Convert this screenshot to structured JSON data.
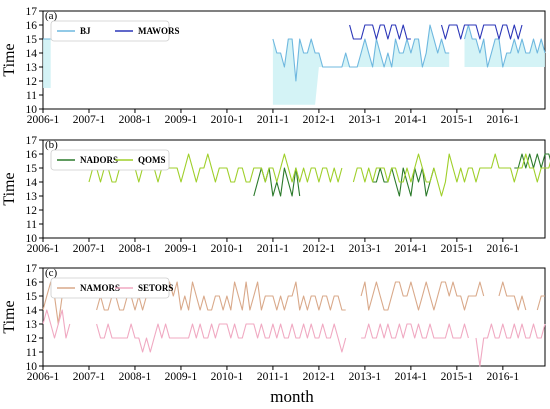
{
  "figure": {
    "xlabel": "month"
  },
  "chart_data": [
    {
      "type": "line",
      "panel_label": "(a)",
      "ylabel": "Time",
      "ylim": [
        10,
        17
      ],
      "yticks": [
        10,
        11,
        12,
        13,
        14,
        15,
        16,
        17
      ],
      "xlim": [
        "2006-01",
        "2016-12"
      ],
      "xticks": [
        "2006-1",
        "2007-1",
        "2008-1",
        "2009-1",
        "2010-1",
        "2011-1",
        "2012-1",
        "2013-1",
        "2014-1",
        "2015-1",
        "2016-1"
      ],
      "legend": {
        "placement": "top-left",
        "entries": [
          "BJ",
          "MAWORS"
        ]
      },
      "series": [
        {
          "name": "BJ",
          "color": "#6fb8df",
          "start": "2006-01",
          "values": [
            15,
            15,
            15,
            null,
            null,
            null,
            null,
            null,
            null,
            null,
            null,
            null,
            null,
            null,
            null,
            null,
            null,
            null,
            null,
            null,
            null,
            null,
            null,
            null,
            null,
            null,
            null,
            null,
            null,
            null,
            null,
            null,
            null,
            null,
            null,
            null,
            null,
            null,
            null,
            null,
            null,
            null,
            null,
            null,
            null,
            null,
            null,
            null,
            null,
            null,
            null,
            null,
            null,
            null,
            null,
            null,
            null,
            null,
            null,
            null,
            15,
            14,
            14,
            13,
            15,
            15,
            12,
            15,
            14,
            14,
            15,
            14,
            14,
            13,
            13,
            13,
            13,
            13,
            13,
            14,
            13,
            13,
            13,
            14,
            15,
            14,
            13,
            15,
            14,
            13,
            14,
            13,
            15,
            14,
            14,
            15,
            14,
            15,
            15,
            13,
            14,
            16,
            15,
            14,
            15,
            14,
            14,
            null,
            null,
            null,
            15,
            16,
            15,
            15,
            14,
            15,
            13,
            14,
            15,
            15,
            13,
            14,
            14,
            15,
            14,
            15,
            14,
            14,
            15,
            14,
            15,
            14
          ],
          "shading": {
            "color": "#ccf1f4",
            "low": [
              11.5,
              11.5,
              11.5,
              null,
              null,
              null,
              null,
              null,
              null,
              null,
              null,
              null,
              null,
              null,
              null,
              null,
              null,
              null,
              null,
              null,
              null,
              null,
              null,
              null,
              null,
              null,
              null,
              null,
              null,
              null,
              null,
              null,
              null,
              null,
              null,
              null,
              null,
              null,
              null,
              null,
              null,
              null,
              null,
              null,
              null,
              null,
              null,
              null,
              null,
              null,
              null,
              null,
              null,
              null,
              null,
              null,
              null,
              null,
              null,
              null,
              10.3,
              10.3,
              10.3,
              10.3,
              10.3,
              10.3,
              10.3,
              10.3,
              10.3,
              10.3,
              10.3,
              10.3,
              13,
              13,
              13,
              13,
              13,
              13,
              13,
              13,
              13,
              13,
              13,
              13,
              13,
              13,
              13,
              13,
              13,
              13,
              13,
              13,
              13,
              13,
              13,
              13,
              13,
              13,
              13,
              13,
              13,
              13,
              13,
              13,
              13,
              13,
              13,
              null,
              null,
              null,
              13,
              13,
              13,
              13,
              13,
              13,
              13,
              13,
              13,
              13,
              13,
              13,
              13,
              13,
              13,
              13,
              13,
              13,
              13,
              13,
              13,
              13
            ]
          }
        },
        {
          "name": "MAWORS",
          "color": "#2b36b8",
          "start": "2012-09",
          "values": [
            16,
            15,
            15,
            15,
            16,
            16,
            16,
            15,
            16,
            16,
            15,
            16,
            16,
            15,
            16,
            15,
            15,
            null,
            null,
            null,
            null,
            null,
            null,
            null,
            16,
            15,
            16,
            16,
            16,
            15,
            16,
            16,
            16,
            16,
            15,
            16,
            16,
            16,
            16,
            15,
            16,
            16,
            15,
            16,
            15,
            16
          ]
        }
      ]
    },
    {
      "type": "line",
      "panel_label": "(b)",
      "ylabel": "Time",
      "ylim": [
        10,
        17
      ],
      "yticks": [
        10,
        11,
        12,
        13,
        14,
        15,
        16,
        17
      ],
      "xlim": [
        "2006-01",
        "2016-12"
      ],
      "xticks": [
        "2006-1",
        "2007-1",
        "2008-1",
        "2009-1",
        "2010-1",
        "2011-1",
        "2012-1",
        "2013-1",
        "2014-1",
        "2015-1",
        "2016-1"
      ],
      "legend": {
        "placement": "top-left",
        "entries": [
          "NADORS",
          "QOMS"
        ]
      },
      "series": [
        {
          "name": "NADORS",
          "color": "#2b7a2b",
          "start": "2010-08",
          "values": [
            13,
            14,
            15,
            14,
            15,
            13,
            14,
            13,
            15,
            14,
            13,
            15,
            13,
            null,
            null,
            null,
            null,
            null,
            null,
            null,
            null,
            null,
            null,
            null,
            null,
            null,
            null,
            null,
            null,
            null,
            null,
            14,
            14,
            15,
            14,
            14,
            15,
            14,
            13,
            15,
            14,
            13,
            15,
            14,
            15,
            13,
            14,
            15,
            null,
            null,
            null,
            null,
            null,
            null,
            null,
            null,
            null,
            null,
            null,
            null,
            null,
            null,
            null,
            null,
            null,
            null,
            null,
            null,
            15,
            15,
            16,
            15,
            16,
            15,
            16,
            15,
            16,
            16,
            15,
            14,
            16
          ]
        },
        {
          "name": "QOMS",
          "color": "#9fcf2a",
          "start": "2007-01",
          "values": [
            14,
            15,
            15,
            14,
            15,
            15,
            14,
            14,
            15,
            15,
            15,
            15,
            15,
            14,
            15,
            15,
            15,
            15,
            14,
            15,
            15,
            15,
            15,
            15,
            14,
            15,
            16,
            15,
            14,
            15,
            15,
            16,
            15,
            14,
            15,
            15,
            15,
            14,
            14,
            15,
            15,
            14,
            14,
            15,
            15,
            15,
            14,
            15,
            15,
            14,
            15,
            16,
            15,
            14,
            15,
            14,
            15,
            14,
            15,
            15,
            14,
            15,
            15,
            14,
            15,
            14,
            15,
            null,
            null,
            14,
            15,
            15,
            14,
            15,
            14,
            15,
            15,
            15,
            14,
            15,
            15,
            14,
            14,
            15,
            14,
            15,
            16,
            15,
            14,
            14,
            15,
            14,
            13,
            14,
            16,
            15,
            14,
            15,
            14,
            15,
            15,
            14,
            15,
            15,
            15,
            15,
            16,
            15,
            15,
            15,
            15,
            14,
            15,
            15,
            16,
            15,
            15,
            14,
            15,
            15,
            15,
            16,
            15,
            15,
            14,
            15,
            15,
            16,
            15,
            15,
            14,
            15
          ]
        }
      ]
    },
    {
      "type": "line",
      "panel_label": "(c)",
      "ylabel": "Time",
      "ylim": [
        10,
        17
      ],
      "yticks": [
        10,
        11,
        12,
        13,
        14,
        15,
        16,
        17
      ],
      "xlim": [
        "2006-01",
        "2016-12"
      ],
      "xticks": [
        "2006-1",
        "2007-1",
        "2008-1",
        "2009-1",
        "2010-1",
        "2011-1",
        "2012-1",
        "2013-1",
        "2014-1",
        "2015-1",
        "2016-1"
      ],
      "legend": {
        "placement": "top-left",
        "entries": [
          "NAMORS",
          "SETORS"
        ]
      },
      "series": [
        {
          "name": "NAMORS",
          "color": "#d9a98a",
          "start": "2006-01",
          "values": [
            14,
            15,
            16,
            15,
            13,
            15,
            15,
            16,
            null,
            null,
            null,
            null,
            null,
            null,
            14,
            15,
            14,
            14,
            15,
            15,
            14,
            14,
            15,
            15,
            14,
            15,
            14,
            15,
            15,
            15,
            15,
            15,
            15,
            16,
            15,
            16,
            14,
            15,
            14,
            16,
            15,
            14,
            15,
            14,
            14,
            15,
            15,
            14,
            15,
            14,
            16,
            15,
            14,
            16,
            14,
            15,
            16,
            14,
            15,
            15,
            15,
            14,
            15,
            14,
            15,
            15,
            16,
            14,
            15,
            14,
            15,
            15,
            14,
            15,
            15,
            14,
            15,
            15,
            14,
            14,
            null,
            null,
            null,
            15,
            16,
            14,
            15,
            16,
            15,
            14,
            14,
            15,
            16,
            16,
            15,
            15,
            16,
            15,
            14,
            15,
            16,
            15,
            14,
            15,
            16,
            16,
            15,
            16,
            15,
            15,
            14,
            15,
            15,
            15,
            16,
            15,
            null,
            null,
            null,
            15,
            16,
            15,
            15,
            15,
            14,
            15,
            14,
            null,
            null,
            14,
            15,
            15
          ]
        },
        {
          "name": "SETORS",
          "color": "#f0a9c2",
          "start": "2006-01",
          "values": [
            13,
            14,
            13,
            12,
            13,
            14,
            12,
            13,
            null,
            null,
            null,
            null,
            null,
            null,
            13,
            12,
            12,
            13,
            12,
            12,
            12,
            12,
            12,
            13,
            12,
            12,
            11,
            12,
            11,
            12,
            13,
            12,
            13,
            12,
            12,
            12,
            12,
            12,
            12,
            13,
            12,
            13,
            12,
            12,
            13,
            12,
            13,
            13,
            13,
            12,
            13,
            12,
            12,
            13,
            13,
            13,
            12,
            13,
            12,
            12,
            13,
            12,
            13,
            12,
            12,
            13,
            12,
            12,
            13,
            12,
            13,
            12,
            12,
            13,
            12,
            12,
            13,
            12,
            11,
            12,
            null,
            null,
            null,
            12,
            12,
            13,
            12,
            12,
            13,
            12,
            13,
            12,
            12,
            13,
            12,
            13,
            13,
            12,
            13,
            12,
            12,
            13,
            12,
            12,
            12,
            12,
            13,
            12,
            12,
            12,
            13,
            12,
            null,
            12,
            10,
            12,
            12,
            13,
            12,
            12,
            13,
            12,
            12,
            13,
            12,
            13,
            12,
            12,
            13,
            12,
            12,
            13
          ]
        }
      ]
    }
  ]
}
